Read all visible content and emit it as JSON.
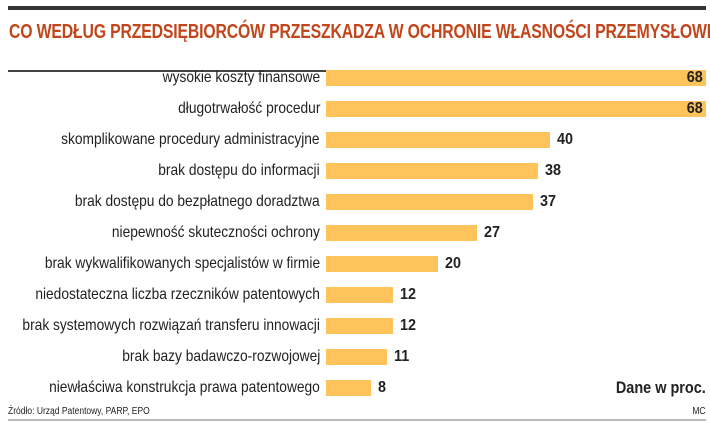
{
  "chart_data": {
    "type": "bar",
    "orientation": "horizontal",
    "title": "CO WEDŁUG PRZEDSIĘBIORCÓW PRZESZKADZA W OCHRONIE WŁASNOŚCI PRZEMYSŁOWEJ",
    "categories": [
      "wysokie koszty finansowe",
      "długotrwałość procedur",
      "skomplikowane procedury administracyjne",
      "brak dostępu do informacji",
      "brak dostępu do bezpłatnego doradztwa",
      "niepewność skuteczności ochrony",
      "brak wykwalifikowanych specjalistów w firmie",
      "niedostateczna liczba rzeczników patentowych",
      "brak systemowych rozwiązań transferu innowacji",
      "brak bazy badawczo-rozwojowej",
      "niewłaściwa konstrukcja prawa patentowego"
    ],
    "values": [
      68,
      68,
      40,
      38,
      37,
      27,
      20,
      12,
      12,
      11,
      8
    ],
    "xlim": [
      0,
      68
    ],
    "unit_note": "Dane w proc.",
    "grid": false,
    "bar_color": "#fec35a",
    "title_color": "#c1461c"
  },
  "footer": {
    "source": "Źródło: Urząd Patentowy, PARP, EPO",
    "author": "MC"
  }
}
